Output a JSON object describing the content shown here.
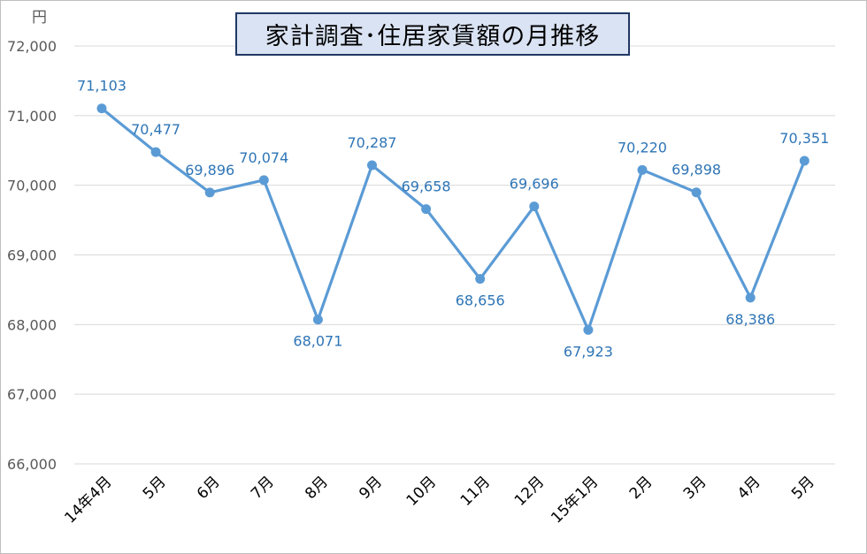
{
  "chart_data": {
    "type": "line",
    "title": "家計調査･住居家賃額の月推移",
    "ylabel": "円",
    "ylim": [
      66000,
      72000
    ],
    "yticks": [
      "66,000",
      "67,000",
      "68,000",
      "69,000",
      "70,000",
      "71,000",
      "72,000"
    ],
    "categories": [
      "14年4月",
      "5月",
      "6月",
      "7月",
      "8月",
      "9月",
      "10月",
      "11月",
      "12月",
      "15年1月",
      "2月",
      "3月",
      "4月",
      "5月"
    ],
    "values": [
      71103,
      70477,
      69896,
      70074,
      68071,
      70287,
      69658,
      68656,
      69696,
      67923,
      70220,
      69898,
      68386,
      70351
    ],
    "data_labels": [
      "71,103",
      "70,477",
      "69,896",
      "70,074",
      "68,071",
      "70,287",
      "69,658",
      "68,656",
      "69,696",
      "67,923",
      "70,220",
      "69,898",
      "68,386",
      "70,351"
    ],
    "grid": true,
    "legend": "none",
    "line_color": "#5b9bd5",
    "label_color": "#2e75b6"
  }
}
